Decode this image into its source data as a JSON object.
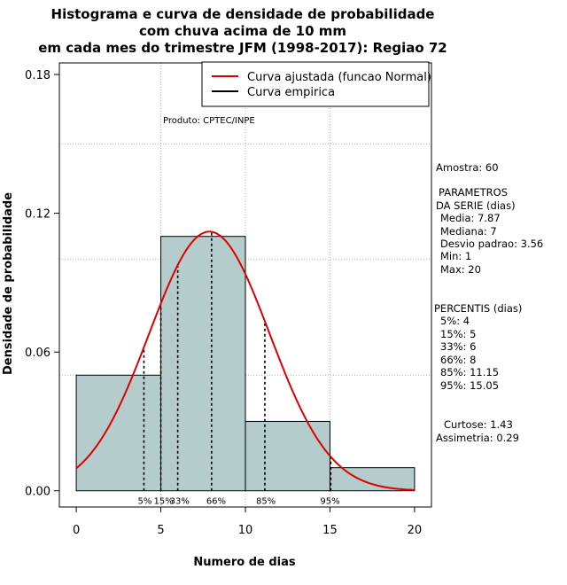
{
  "chart_data": {
    "type": "bar",
    "title_lines": [
      "Histograma e curva de densidade de probabilidade",
      "com chuva acima de 10 mm",
      "em cada mes do trimestre JFM (1998-2017): Regiao 72"
    ],
    "xlabel": "Numero de dias",
    "ylabel": "Densidade de probabilidade",
    "xlim": [
      -1,
      21
    ],
    "ylim": [
      -0.007,
      0.185
    ],
    "x_ticks": [
      0,
      5,
      10,
      15,
      20
    ],
    "y_ticks": [
      0.0,
      0.06,
      0.12,
      0.18
    ],
    "y_tick_labels": [
      "0.00",
      "0.06",
      "0.12",
      "0.18"
    ],
    "grid_x": [
      5,
      10,
      15
    ],
    "grid_y": [
      0.05,
      0.1,
      0.15
    ],
    "grid": true,
    "bins": [
      {
        "start": 0,
        "end": 5,
        "density": 0.05
      },
      {
        "start": 5,
        "end": 10,
        "density": 0.11
      },
      {
        "start": 10,
        "end": 15,
        "density": 0.03
      },
      {
        "start": 15,
        "end": 20,
        "density": 0.01
      }
    ],
    "normal_curve": {
      "name": "Curva ajustada (funcao Normal)",
      "mean": 7.87,
      "sd": 3.56,
      "x_range": [
        0,
        20
      ],
      "color": "#dd0000"
    },
    "empirical_curve": {
      "name": "Curva empirica",
      "color": "#000000"
    },
    "legend_position": "top-right",
    "note": "Produto: CPTEC/INPE",
    "percentiles": [
      {
        "label": "5%",
        "x": 4
      },
      {
        "label": "15%",
        "x": 5
      },
      {
        "label": "33%",
        "x": 6
      },
      {
        "label": "66%",
        "x": 8
      },
      {
        "label": "85%",
        "x": 11.15
      },
      {
        "label": "95%",
        "x": 15.05
      }
    ],
    "bar_color": "#b5cccc"
  },
  "side_panel": {
    "amostra": "Amostra: 60",
    "params_header_1": "PARAMETROS",
    "params_header_2": "DA SERIE (dias)",
    "media": "Media: 7.87",
    "mediana": "Mediana: 7",
    "desvio": "Desvio padrao: 3.56",
    "min": "Min: 1",
    "max": "Max: 20",
    "percentis_header": "PERCENTIS (dias)",
    "p5": "5%: 4",
    "p15": "15%: 5",
    "p33": "33%: 6",
    "p66": "66%: 8",
    "p85": "85%: 11.15",
    "p95": "95%: 15.05",
    "curtose": "Curtose: 1.43",
    "assimetria": "Assimetria: 0.29"
  }
}
